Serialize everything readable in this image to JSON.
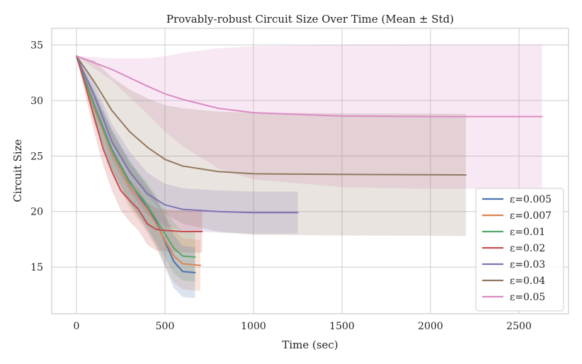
{
  "chart_data": {
    "type": "line",
    "title": "Provably-robust Circuit Size Over Time (Mean ± Std)",
    "xlabel": "Time (sec)",
    "ylabel": "Circuit Size",
    "xlim": [
      -140,
      2780
    ],
    "ylim": [
      10.8,
      36.5
    ],
    "xticks": [
      0,
      500,
      1000,
      1500,
      2000,
      2500
    ],
    "yticks": [
      15,
      20,
      25,
      30,
      35
    ],
    "grid": true,
    "legend_position": "lower-right",
    "series": [
      {
        "name": "ε=0.005",
        "color": "#4c72b0",
        "points": [
          [
            0,
            34
          ],
          [
            100,
            29.6
          ],
          [
            200,
            25.6
          ],
          [
            300,
            22.7
          ],
          [
            400,
            20.3
          ],
          [
            450,
            19.1
          ],
          [
            500,
            17.3
          ],
          [
            550,
            15.5
          ],
          [
            600,
            14.6
          ],
          [
            670,
            14.5
          ]
        ],
        "std": [
          0,
          1.3,
          1.8,
          1.9,
          2.0,
          2.1,
          2.3,
          2.4,
          2.3,
          2.3
        ]
      },
      {
        "name": "ε=0.007",
        "color": "#dd8452",
        "points": [
          [
            0,
            34
          ],
          [
            100,
            29.3
          ],
          [
            200,
            25.3
          ],
          [
            300,
            22.3
          ],
          [
            400,
            20.2
          ],
          [
            450,
            18.9
          ],
          [
            500,
            17.4
          ],
          [
            550,
            16.0
          ],
          [
            600,
            15.3
          ],
          [
            700,
            15.15
          ]
        ],
        "std": [
          0,
          1.3,
          1.8,
          2.0,
          2.1,
          2.2,
          2.3,
          2.4,
          2.3,
          2.3
        ]
      },
      {
        "name": "ε=0.01",
        "color": "#55a868",
        "points": [
          [
            0,
            34
          ],
          [
            100,
            29.5
          ],
          [
            200,
            25.5
          ],
          [
            300,
            22.6
          ],
          [
            400,
            20.6
          ],
          [
            450,
            19.3
          ],
          [
            500,
            18.0
          ],
          [
            550,
            16.7
          ],
          [
            600,
            16.0
          ],
          [
            670,
            15.9
          ]
        ],
        "std": [
          0,
          1.3,
          1.8,
          1.9,
          2.0,
          2.1,
          2.2,
          2.3,
          2.2,
          2.2
        ]
      },
      {
        "name": "ε=0.02",
        "color": "#c44e52",
        "points": [
          [
            0,
            34
          ],
          [
            50,
            31.4
          ],
          [
            100,
            28.5
          ],
          [
            150,
            25.7
          ],
          [
            200,
            23.6
          ],
          [
            250,
            21.9
          ],
          [
            300,
            21.0
          ],
          [
            350,
            20.2
          ],
          [
            400,
            18.9
          ],
          [
            450,
            18.4
          ],
          [
            500,
            18.3
          ],
          [
            600,
            18.2
          ],
          [
            710,
            18.2
          ]
        ],
        "std": [
          0,
          0.9,
          1.3,
          1.5,
          1.7,
          1.8,
          1.9,
          1.9,
          1.9,
          1.9,
          1.9,
          1.9,
          1.9
        ]
      },
      {
        "name": "ε=0.03",
        "color": "#8172b3",
        "points": [
          [
            0,
            34
          ],
          [
            100,
            30.5
          ],
          [
            200,
            26.3
          ],
          [
            300,
            23.6
          ],
          [
            400,
            21.6
          ],
          [
            500,
            20.6
          ],
          [
            600,
            20.2
          ],
          [
            800,
            20.0
          ],
          [
            1000,
            19.9
          ],
          [
            1250,
            19.9
          ]
        ],
        "std": [
          0,
          1.1,
          1.6,
          1.8,
          1.9,
          1.9,
          1.9,
          1.9,
          1.9,
          1.9
        ]
      },
      {
        "name": "ε=0.04",
        "color": "#937860",
        "points": [
          [
            0,
            34
          ],
          [
            100,
            31.7
          ],
          [
            200,
            29.1
          ],
          [
            300,
            27.2
          ],
          [
            400,
            25.8
          ],
          [
            500,
            24.7
          ],
          [
            600,
            24.1
          ],
          [
            800,
            23.6
          ],
          [
            1000,
            23.4
          ],
          [
            1500,
            23.35
          ],
          [
            2200,
            23.3
          ]
        ],
        "std": [
          0,
          1.9,
          3.0,
          3.8,
          4.4,
          4.9,
          5.2,
          5.4,
          5.5,
          5.5,
          5.5
        ]
      },
      {
        "name": "ε=0.05",
        "color": "#da8bc3",
        "points": [
          [
            0,
            34
          ],
          [
            200,
            32.8
          ],
          [
            400,
            31.3
          ],
          [
            500,
            30.6
          ],
          [
            600,
            30.1
          ],
          [
            800,
            29.3
          ],
          [
            1000,
            28.9
          ],
          [
            1500,
            28.6
          ],
          [
            2000,
            28.55
          ],
          [
            2630,
            28.55
          ]
        ],
        "std": [
          0,
          1.0,
          2.5,
          3.4,
          4.2,
          5.4,
          6.0,
          6.4,
          6.5,
          6.5
        ]
      }
    ]
  }
}
